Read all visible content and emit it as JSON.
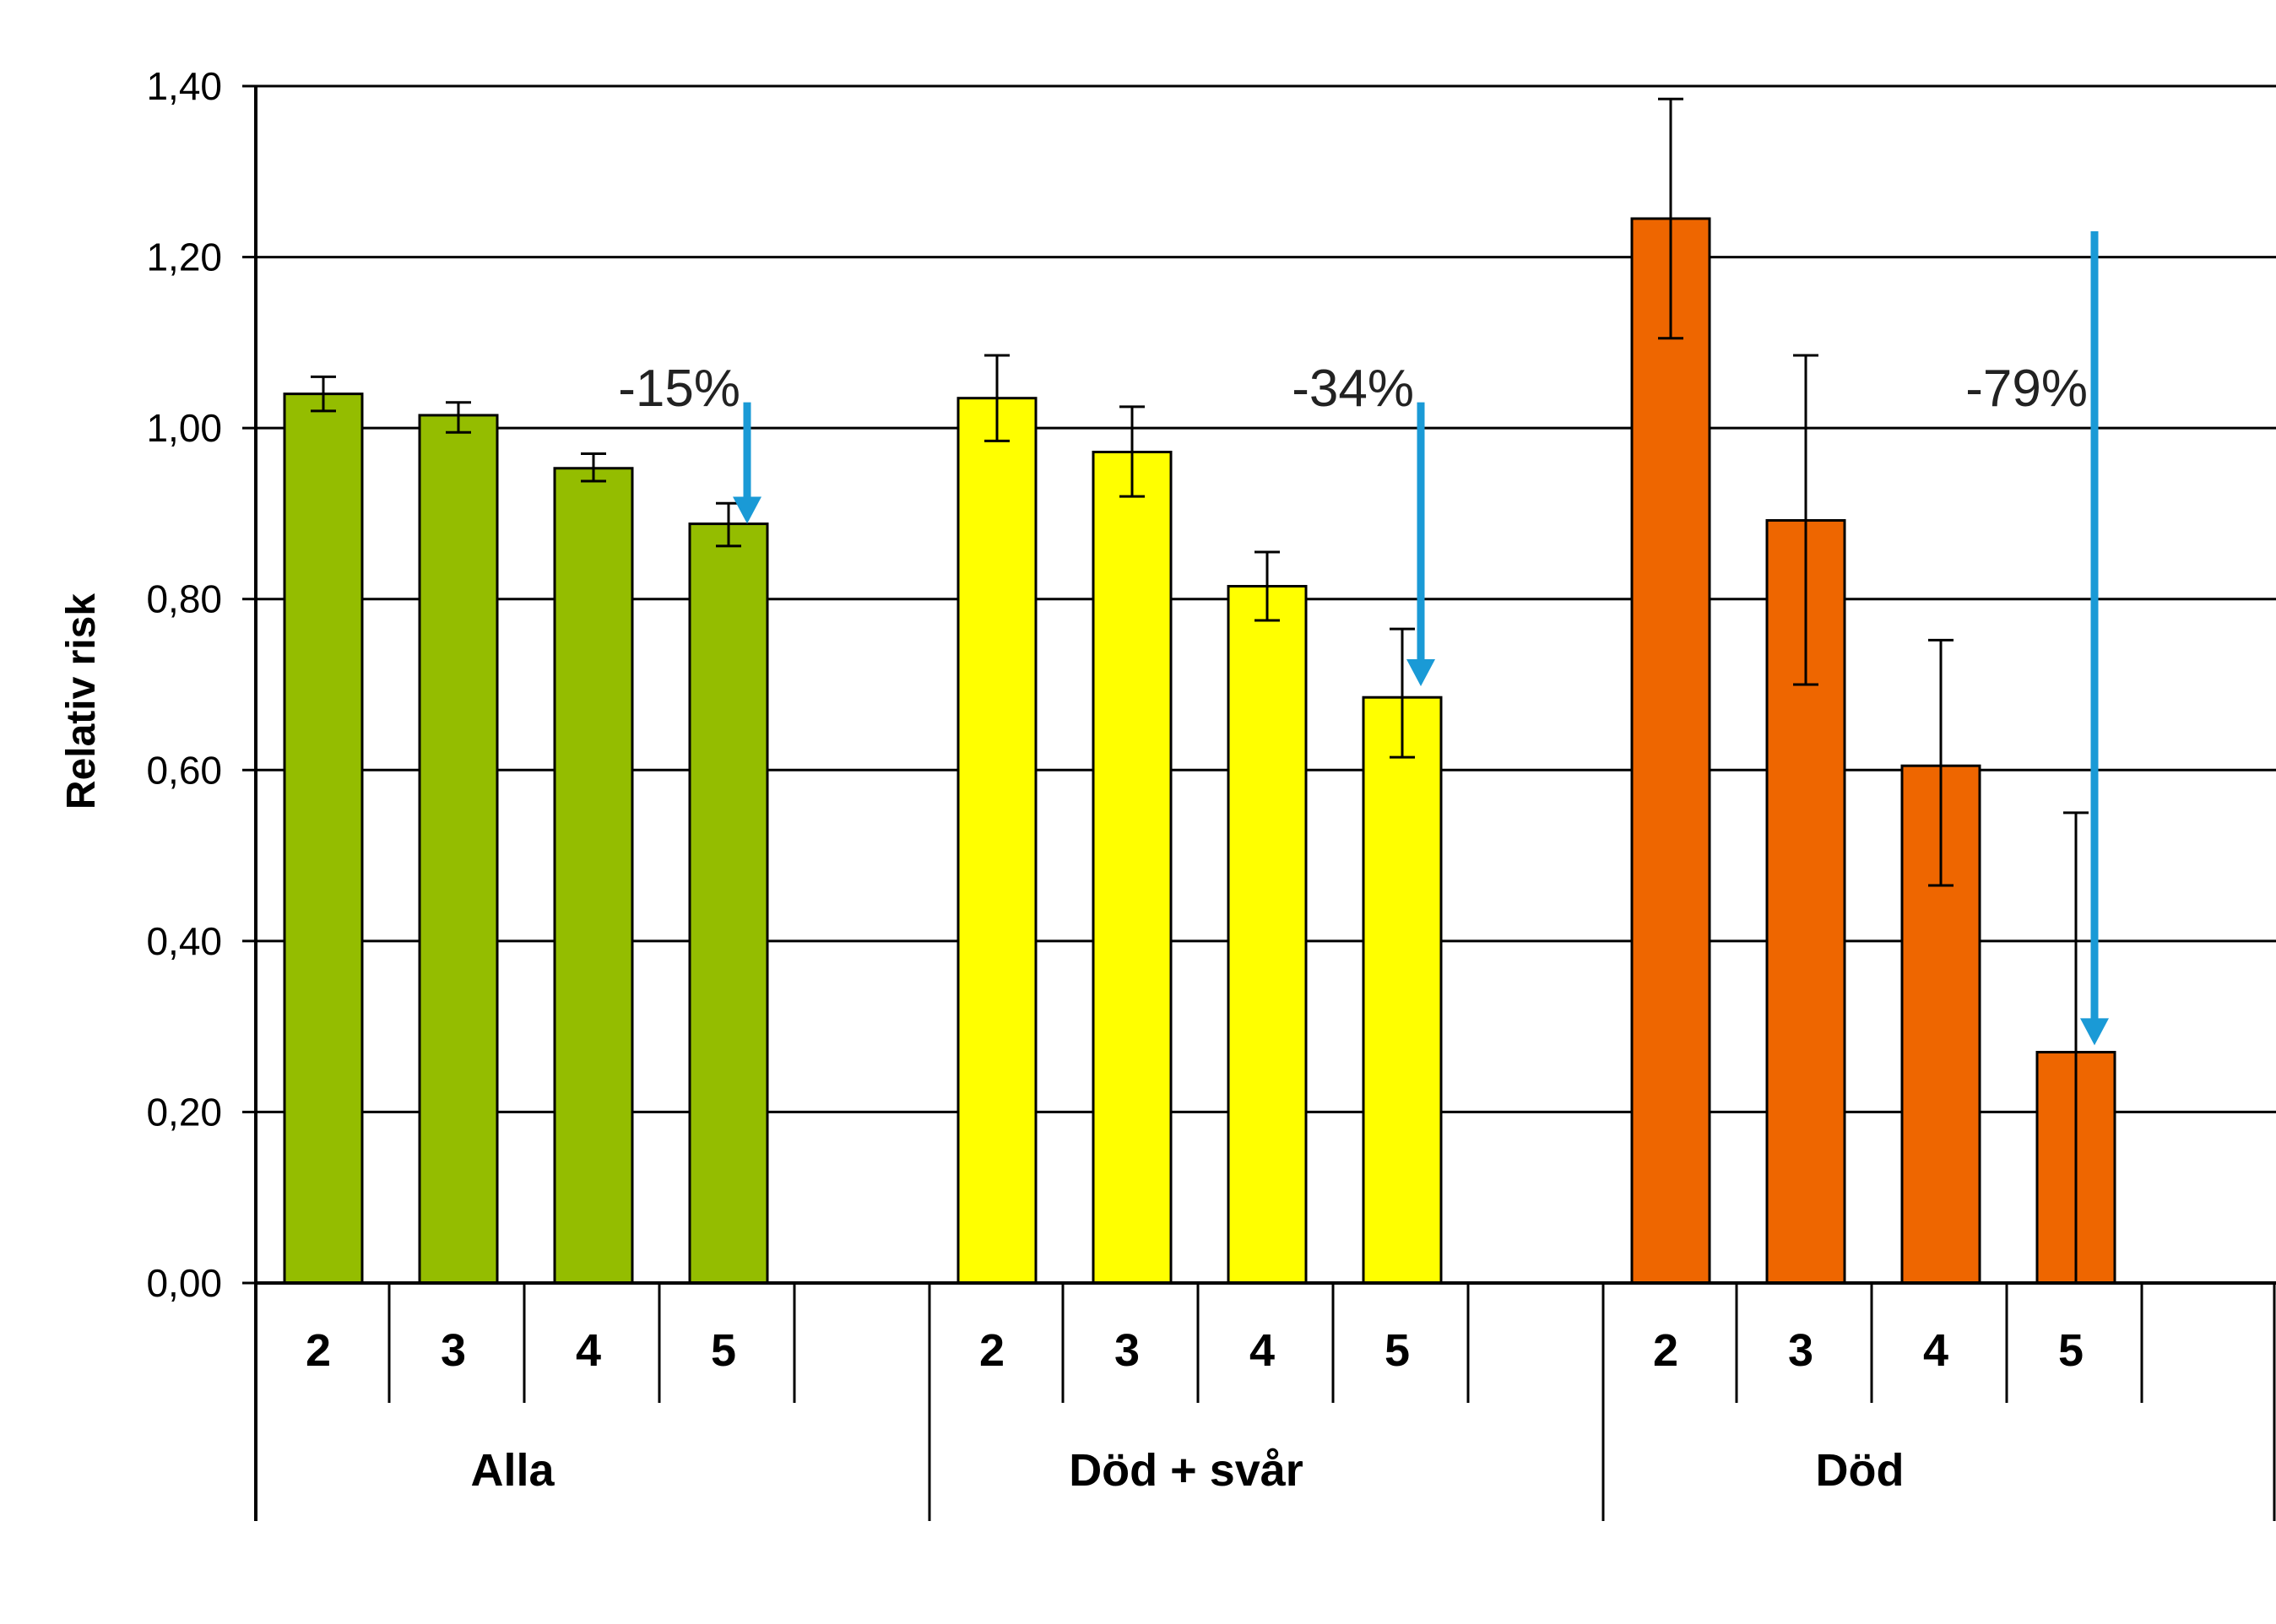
{
  "chart_data": {
    "type": "bar",
    "title": "",
    "xlabel": "",
    "ylabel": "Relativ risk",
    "ylim": [
      0,
      1.4
    ],
    "yticks": [
      "0,00",
      "0,20",
      "0,40",
      "0,60",
      "0,80",
      "1,00",
      "1,20",
      "1,40"
    ],
    "grid": true,
    "groups": [
      {
        "name": "Alla",
        "color": "#94bd00",
        "categories": [
          "2",
          "3",
          "4",
          "5"
        ],
        "values": [
          1.04,
          1.015,
          0.953,
          0.888
        ],
        "err_low": [
          1.02,
          0.995,
          0.938,
          0.862
        ],
        "err_high": [
          1.06,
          1.03,
          0.97,
          0.912
        ],
        "annotation": {
          "label": "-15%",
          "from": 1.04,
          "to": 0.89
        }
      },
      {
        "name": "Död + svår",
        "color": "#ffff00",
        "categories": [
          "2",
          "3",
          "4",
          "5"
        ],
        "values": [
          1.035,
          0.972,
          0.815,
          0.685
        ],
        "err_low": [
          0.985,
          0.92,
          0.775,
          0.615
        ],
        "err_high": [
          1.085,
          1.025,
          0.855,
          0.765
        ],
        "annotation": {
          "label": "-34%",
          "from": 1.04,
          "to": 0.7
        }
      },
      {
        "name": "Död",
        "color": "#ee6600",
        "categories": [
          "2",
          "3",
          "4",
          "5"
        ],
        "values": [
          1.245,
          0.892,
          0.605,
          0.27
        ],
        "err_low": [
          1.105,
          0.7,
          0.465,
          0.0
        ],
        "err_high": [
          1.385,
          1.085,
          0.752,
          0.55
        ],
        "annotation": {
          "label": "-79%",
          "from": 1.24,
          "to": 0.28
        }
      }
    ],
    "arrow_color": "#1a9ad6"
  }
}
